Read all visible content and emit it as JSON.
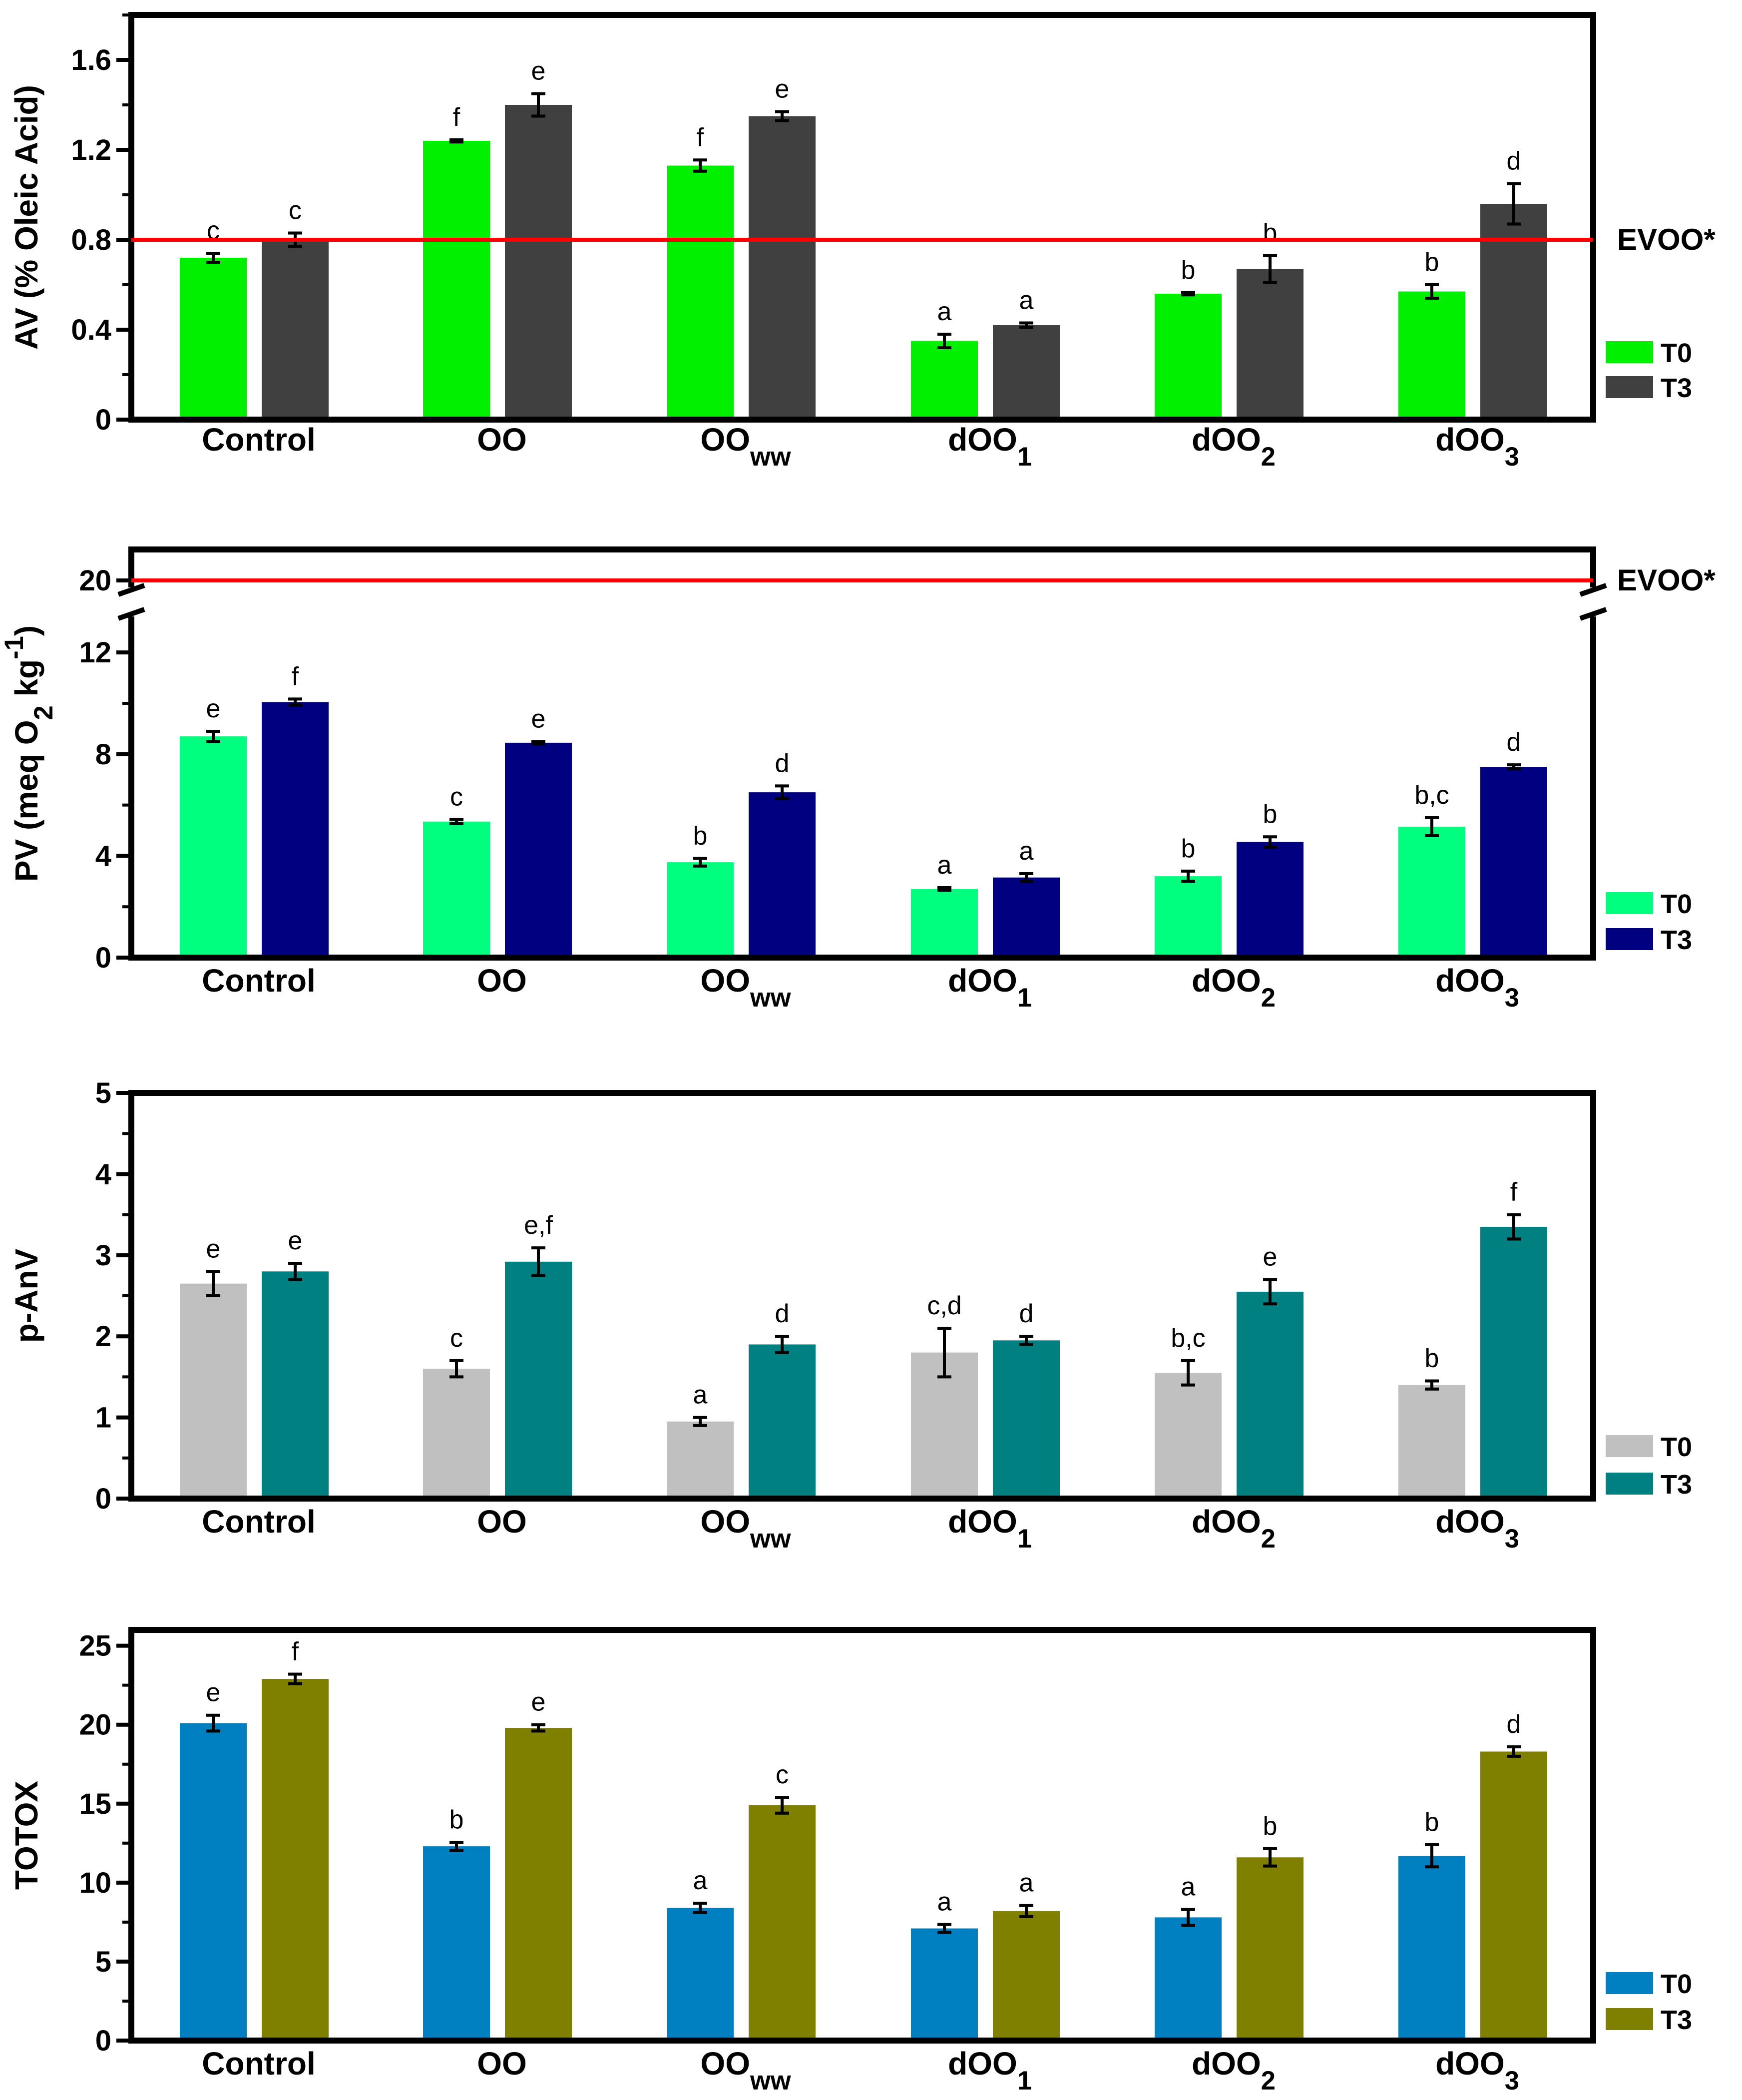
{
  "chart_data": [
    {
      "type": "bar",
      "ylabel": "AV (% Oleic Acid)",
      "categories": [
        "Control",
        "OO",
        "OO|ww",
        "dOO|1",
        "dOO|2",
        "dOO|3"
      ],
      "ylim": [
        0,
        1.8
      ],
      "yticks": [
        0,
        0.4,
        0.8,
        1.2,
        1.6
      ],
      "ytick_labels": [
        "0",
        "0.4",
        "0.8",
        "1.2",
        "1.6"
      ],
      "reference_line": {
        "value": 0.8,
        "label": "EVOO*",
        "color": "#ff0000"
      },
      "series": [
        {
          "name": "T0",
          "color": "#00f000",
          "values": [
            0.72,
            1.24,
            1.13,
            0.35,
            0.56,
            0.57
          ],
          "errors": [
            0.02,
            0.005,
            0.025,
            0.03,
            0.005,
            0.03
          ],
          "letters": [
            "c",
            "f",
            "f",
            "a",
            "b",
            "b"
          ]
        },
        {
          "name": "T3",
          "color": "#404040",
          "values": [
            0.8,
            1.4,
            1.35,
            0.42,
            0.67,
            0.96
          ],
          "errors": [
            0.03,
            0.05,
            0.02,
            0.01,
            0.06,
            0.09
          ],
          "letters": [
            "c",
            "e",
            "e",
            "a",
            "b",
            "d"
          ]
        }
      ]
    },
    {
      "type": "bar",
      "ylabel": "PV (meq O|2| kg|-1|)",
      "categories": [
        "Control",
        "OO",
        "OO|ww",
        "dOO|1",
        "dOO|2",
        "dOO|3"
      ],
      "ylim": [
        0,
        14
      ],
      "axis_break": {
        "at": 13.3,
        "upper_label": "20"
      },
      "yticks": [
        0,
        4,
        8,
        12
      ],
      "ytick_labels": [
        "0",
        "4",
        "8",
        "12"
      ],
      "reference_line": {
        "value": 20,
        "label": "EVOO*",
        "color": "#ff0000"
      },
      "series": [
        {
          "name": "T0",
          "color": "#00ff7f",
          "values": [
            8.7,
            5.35,
            3.75,
            2.7,
            3.2,
            5.15
          ],
          "errors": [
            0.2,
            0.08,
            0.15,
            0.05,
            0.2,
            0.35
          ],
          "letters": [
            "e",
            "c",
            "b",
            "a",
            "b",
            "b,c"
          ]
        },
        {
          "name": "T3",
          "color": "#000080",
          "values": [
            10.05,
            8.45,
            6.5,
            3.15,
            4.55,
            7.5
          ],
          "errors": [
            0.12,
            0.05,
            0.25,
            0.15,
            0.2,
            0.08
          ],
          "letters": [
            "f",
            "e",
            "d",
            "a",
            "b",
            "d"
          ]
        }
      ]
    },
    {
      "type": "bar",
      "ylabel": "p-AnV",
      "categories": [
        "Control",
        "OO",
        "OO|ww",
        "dOO|1",
        "dOO|2",
        "dOO|3"
      ],
      "ylim": [
        0,
        5
      ],
      "yticks": [
        0,
        1,
        2,
        3,
        4,
        5
      ],
      "ytick_labels": [
        "0",
        "1",
        "2",
        "3",
        "4",
        "5"
      ],
      "series": [
        {
          "name": "T0",
          "color": "#c0c0c0",
          "values": [
            2.65,
            1.6,
            0.95,
            1.8,
            1.55,
            1.4
          ],
          "errors": [
            0.15,
            0.1,
            0.05,
            0.3,
            0.15,
            0.05
          ],
          "letters": [
            "e",
            "c",
            "a",
            "c,d",
            "b,c",
            "b"
          ]
        },
        {
          "name": "T3",
          "color": "#008080",
          "values": [
            2.8,
            2.92,
            1.9,
            1.95,
            2.55,
            3.35
          ],
          "errors": [
            0.1,
            0.17,
            0.1,
            0.05,
            0.15,
            0.15
          ],
          "letters": [
            "e",
            "e,f",
            "d",
            "d",
            "e",
            "f"
          ]
        }
      ]
    },
    {
      "type": "bar",
      "ylabel": "TOTOX",
      "categories": [
        "Control",
        "OO",
        "OO|ww",
        "dOO|1",
        "dOO|2",
        "dOO|3"
      ],
      "ylim": [
        0,
        26
      ],
      "yticks": [
        0,
        5,
        10,
        15,
        20,
        25
      ],
      "ytick_labels": [
        "0",
        "5",
        "10",
        "15",
        "20",
        "25"
      ],
      "series": [
        {
          "name": "T0",
          "color": "#0080c0",
          "values": [
            20.1,
            12.3,
            8.4,
            7.1,
            7.8,
            11.7
          ],
          "errors": [
            0.5,
            0.25,
            0.3,
            0.25,
            0.5,
            0.7
          ],
          "letters": [
            "e",
            "b",
            "a",
            "a",
            "a",
            "b"
          ]
        },
        {
          "name": "T3",
          "color": "#808000",
          "values": [
            22.9,
            19.8,
            14.9,
            8.2,
            11.6,
            18.3
          ],
          "errors": [
            0.3,
            0.2,
            0.5,
            0.35,
            0.55,
            0.3
          ],
          "letters": [
            "f",
            "e",
            "c",
            "a",
            "b",
            "d"
          ]
        }
      ]
    }
  ]
}
